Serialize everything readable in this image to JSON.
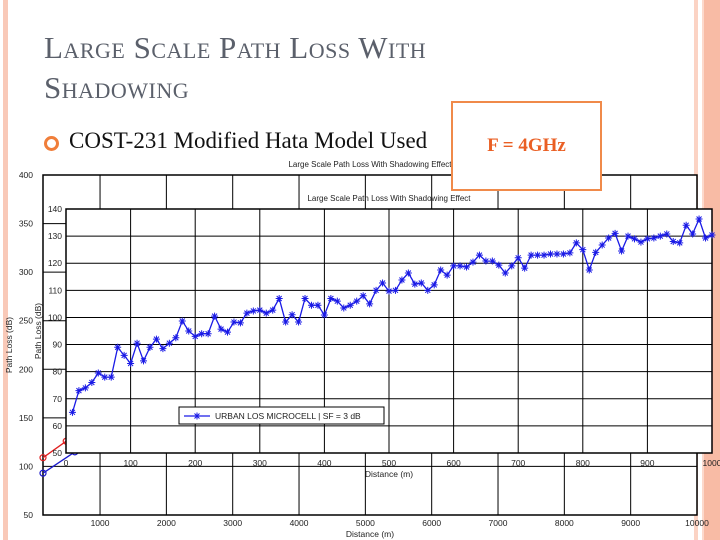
{
  "slide": {
    "title": "Large Scale Path Loss With Shadowing",
    "bullet": "COST-231 Modified Hata Model Used",
    "frequency_label": "F = 4GHz",
    "accent_color": "#f07e3a"
  },
  "chart_data": [
    {
      "type": "line",
      "title": "Large Scale Path Loss With Shadowing Effect",
      "xlabel": "Distance (m)",
      "ylabel": "Path Loss (dB)",
      "xlim": [
        140,
        10000
      ],
      "ylim": [
        50,
        400
      ],
      "xticks": [
        1000,
        2000,
        3000,
        4000,
        5000,
        6000,
        7000,
        8000,
        9000,
        10000
      ],
      "yticks": [
        50,
        100,
        150,
        200,
        250,
        300,
        350,
        400
      ],
      "grid": true,
      "series": [
        {
          "color": "#1a1acc",
          "x": [
            140,
            620
          ],
          "y": [
            93,
            115
          ]
        },
        {
          "color": "#e02020",
          "x": [
            140,
            490
          ],
          "y": [
            109,
            126
          ]
        }
      ]
    },
    {
      "type": "line",
      "title": "Large Scale Path Loss With Shadowing Effect",
      "xlabel": "Distance (m)",
      "ylabel": "Path Loss (dB)",
      "xlim": [
        0,
        1000
      ],
      "ylim": [
        50,
        140
      ],
      "xticks": [
        0,
        100,
        200,
        300,
        400,
        500,
        600,
        700,
        800,
        900,
        1000
      ],
      "yticks": [
        50,
        60,
        70,
        80,
        90,
        100,
        110,
        120,
        130,
        140
      ],
      "grid": true,
      "legend_placement": "lower-center",
      "series": [
        {
          "name": "URBAN LOS MICROCELL | SF = 3 dB",
          "color": "#1a1ae6",
          "marker": "star",
          "x": [
            10,
            20,
            30,
            40,
            50,
            60,
            70,
            80,
            90,
            100,
            110,
            120,
            130,
            140,
            150,
            160,
            170,
            180,
            190,
            200,
            210,
            220,
            230,
            240,
            250,
            260,
            270,
            280,
            290,
            300,
            310,
            320,
            330,
            340,
            350,
            360,
            370,
            380,
            390,
            400,
            410,
            420,
            430,
            440,
            450,
            460,
            470,
            480,
            490,
            500,
            510,
            520,
            530,
            540,
            550,
            560,
            570,
            580,
            590,
            600,
            610,
            620,
            630,
            640,
            650,
            660,
            670,
            680,
            690,
            700,
            710,
            720,
            730,
            740,
            750,
            760,
            770,
            780,
            790,
            800,
            810,
            820,
            830,
            840,
            850,
            860,
            870,
            880,
            890,
            900,
            910,
            920,
            930,
            940,
            950,
            960,
            970,
            980,
            990,
            1000
          ],
          "y": [
            65,
            73,
            74,
            76,
            79.5,
            78,
            78,
            89,
            86,
            83,
            90.5,
            84,
            89,
            92,
            88.5,
            90.5,
            92.5,
            98.7,
            95,
            93,
            94,
            94,
            100.5,
            95.7,
            94.6,
            98.3,
            98,
            101.6,
            102.4,
            102.7,
            101.6,
            102.7,
            107,
            98.3,
            101,
            98.3,
            107,
            104.5,
            104.5,
            100.9,
            107,
            106,
            103.5,
            104.5,
            106,
            108,
            105,
            110,
            112.7,
            109.7,
            110,
            113.8,
            116.4,
            112.3,
            112.7,
            110,
            112,
            117.5,
            115.6,
            119,
            119,
            118.6,
            120.4,
            123,
            120.8,
            120.8,
            119.3,
            116.4,
            119,
            122,
            118.2,
            123,
            123,
            123,
            123.4,
            123.4,
            123.4,
            123.8,
            127.5,
            125,
            117.5,
            124,
            126.7,
            129.3,
            131,
            124.5,
            130,
            129,
            127.8,
            129,
            129.3,
            130,
            130.8,
            128,
            127.5,
            134,
            130.8,
            136.3,
            129.3,
            130.4
          ]
        }
      ]
    }
  ]
}
